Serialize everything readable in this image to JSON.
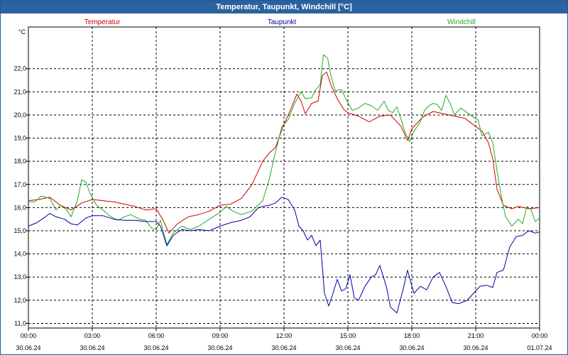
{
  "window": {
    "title": "Temperatur, Taupunkt, Windchill [°C]"
  },
  "chart_data": {
    "type": "line",
    "title": "Temperatur, Taupunkt, Windchill [°C]",
    "ylabel": "°C",
    "ylim": [
      10.8,
      23.8
    ],
    "xlim": [
      0,
      24
    ],
    "legend_position": "top",
    "grid": true,
    "yticks": [
      "11,0",
      "12,0",
      "13,0",
      "14,0",
      "15,0",
      "16,0",
      "17,0",
      "18,0",
      "19,0",
      "20,0",
      "21,0",
      "22,0"
    ],
    "xticks": [
      {
        "time": "00:00",
        "date": "30.06.24"
      },
      {
        "time": "03:00",
        "date": "30.06.24"
      },
      {
        "time": "06:00",
        "date": "30.06.24"
      },
      {
        "time": "09:00",
        "date": "30.06.24"
      },
      {
        "time": "12:00",
        "date": "30.06.24"
      },
      {
        "time": "15:00",
        "date": "30.06.24"
      },
      {
        "time": "18:00",
        "date": "30.06.24"
      },
      {
        "time": "21:00",
        "date": "30.06.24"
      },
      {
        "time": "00:00",
        "date": "01.07.24"
      }
    ],
    "series": [
      {
        "name": "Temperatur",
        "color": "#cc0000",
        "points": [
          [
            0,
            16.3
          ],
          [
            0.5,
            16.35
          ],
          [
            1,
            16.45
          ],
          [
            1.5,
            16.1
          ],
          [
            2,
            15.9
          ],
          [
            2.5,
            16.2
          ],
          [
            3,
            16.35
          ],
          [
            4,
            16.25
          ],
          [
            5,
            16.05
          ],
          [
            5.5,
            15.9
          ],
          [
            6,
            15.95
          ],
          [
            6.3,
            15.5
          ],
          [
            6.6,
            14.9
          ],
          [
            7,
            15.3
          ],
          [
            7.5,
            15.6
          ],
          [
            8,
            15.7
          ],
          [
            8.5,
            15.85
          ],
          [
            9,
            16.1
          ],
          [
            9.5,
            16.15
          ],
          [
            10,
            16.4
          ],
          [
            10.5,
            17.0
          ],
          [
            11,
            18.0
          ],
          [
            11.3,
            18.35
          ],
          [
            11.6,
            18.6
          ],
          [
            12,
            19.6
          ],
          [
            12.3,
            20.2
          ],
          [
            12.6,
            20.9
          ],
          [
            12.8,
            20.6
          ],
          [
            13,
            20.05
          ],
          [
            13.3,
            20.5
          ],
          [
            13.6,
            20.6
          ],
          [
            13.8,
            21.7
          ],
          [
            14,
            21.85
          ],
          [
            14.2,
            21.3
          ],
          [
            14.5,
            20.7
          ],
          [
            14.8,
            20.25
          ],
          [
            15,
            20.1
          ],
          [
            15.5,
            19.95
          ],
          [
            16,
            19.7
          ],
          [
            16.5,
            19.95
          ],
          [
            17,
            20.0
          ],
          [
            17.3,
            19.7
          ],
          [
            17.5,
            19.5
          ],
          [
            17.8,
            18.9
          ],
          [
            18,
            19.4
          ],
          [
            18.5,
            19.9
          ],
          [
            19,
            20.15
          ],
          [
            19.5,
            20.05
          ],
          [
            20,
            19.95
          ],
          [
            20.5,
            19.85
          ],
          [
            21,
            19.5
          ],
          [
            21.3,
            19.3
          ],
          [
            21.6,
            18.8
          ],
          [
            21.8,
            18.1
          ],
          [
            22,
            16.8
          ],
          [
            22.3,
            16.1
          ],
          [
            22.7,
            15.95
          ],
          [
            23,
            16.05
          ],
          [
            23.5,
            15.95
          ],
          [
            24,
            16.0
          ]
        ]
      },
      {
        "name": "Taupunkt",
        "color": "#0000aa",
        "points": [
          [
            0,
            15.2
          ],
          [
            0.4,
            15.35
          ],
          [
            0.8,
            15.6
          ],
          [
            1,
            15.75
          ],
          [
            1.3,
            15.6
          ],
          [
            1.7,
            15.5
          ],
          [
            2,
            15.3
          ],
          [
            2.3,
            15.25
          ],
          [
            2.7,
            15.55
          ],
          [
            3,
            15.65
          ],
          [
            3.5,
            15.65
          ],
          [
            4,
            15.5
          ],
          [
            4.5,
            15.45
          ],
          [
            5,
            15.45
          ],
          [
            5.5,
            15.4
          ],
          [
            6,
            15.4
          ],
          [
            6.2,
            15.2
          ],
          [
            6.5,
            14.35
          ],
          [
            6.8,
            14.8
          ],
          [
            7.2,
            15.05
          ],
          [
            7.6,
            15.0
          ],
          [
            8,
            15.05
          ],
          [
            8.5,
            15.0
          ],
          [
            9,
            15.2
          ],
          [
            9.5,
            15.35
          ],
          [
            10,
            15.45
          ],
          [
            10.4,
            15.6
          ],
          [
            10.8,
            16.0
          ],
          [
            11,
            16.05
          ],
          [
            11.3,
            16.1
          ],
          [
            11.6,
            16.2
          ],
          [
            11.9,
            16.45
          ],
          [
            12.2,
            16.35
          ],
          [
            12.5,
            15.9
          ],
          [
            12.7,
            15.2
          ],
          [
            12.9,
            15.0
          ],
          [
            13.1,
            14.6
          ],
          [
            13.3,
            14.8
          ],
          [
            13.5,
            14.35
          ],
          [
            13.7,
            14.6
          ],
          [
            13.9,
            12.3
          ],
          [
            14.1,
            11.75
          ],
          [
            14.3,
            12.3
          ],
          [
            14.5,
            12.9
          ],
          [
            14.7,
            12.4
          ],
          [
            14.9,
            12.5
          ],
          [
            15.1,
            13.1
          ],
          [
            15.3,
            12.1
          ],
          [
            15.5,
            12.0
          ],
          [
            15.8,
            12.6
          ],
          [
            16.1,
            13.0
          ],
          [
            16.3,
            13.1
          ],
          [
            16.5,
            13.5
          ],
          [
            16.8,
            12.6
          ],
          [
            17,
            11.7
          ],
          [
            17.3,
            11.45
          ],
          [
            17.6,
            12.5
          ],
          [
            17.8,
            13.3
          ],
          [
            18.1,
            12.3
          ],
          [
            18.4,
            12.6
          ],
          [
            18.7,
            12.45
          ],
          [
            19,
            13.0
          ],
          [
            19.3,
            13.2
          ],
          [
            19.6,
            12.6
          ],
          [
            19.9,
            11.9
          ],
          [
            20.2,
            11.85
          ],
          [
            20.6,
            12.0
          ],
          [
            20.9,
            12.3
          ],
          [
            21.2,
            12.6
          ],
          [
            21.5,
            12.65
          ],
          [
            21.8,
            12.55
          ],
          [
            22.0,
            13.2
          ],
          [
            22.3,
            13.3
          ],
          [
            22.6,
            14.3
          ],
          [
            22.9,
            14.75
          ],
          [
            23.2,
            14.8
          ],
          [
            23.5,
            15.0
          ],
          [
            23.8,
            14.9
          ],
          [
            24,
            14.95
          ]
        ]
      },
      {
        "name": "Windchill",
        "color": "#22aa22",
        "points": [
          [
            0,
            16.25
          ],
          [
            0.3,
            16.25
          ],
          [
            0.6,
            16.5
          ],
          [
            1,
            16.4
          ],
          [
            1.3,
            15.9
          ],
          [
            1.5,
            16.1
          ],
          [
            1.8,
            15.9
          ],
          [
            2,
            15.6
          ],
          [
            2.3,
            16.3
          ],
          [
            2.5,
            17.2
          ],
          [
            2.7,
            17.1
          ],
          [
            2.9,
            16.6
          ],
          [
            3.2,
            16.1
          ],
          [
            3.5,
            15.9
          ],
          [
            3.8,
            15.65
          ],
          [
            4.2,
            15.45
          ],
          [
            4.5,
            15.6
          ],
          [
            4.8,
            15.7
          ],
          [
            5.2,
            15.5
          ],
          [
            5.5,
            15.45
          ],
          [
            5.8,
            15.1
          ],
          [
            6,
            15.05
          ],
          [
            6.2,
            15.45
          ],
          [
            6.5,
            14.4
          ],
          [
            6.8,
            14.9
          ],
          [
            7.2,
            15.2
          ],
          [
            7.6,
            15.05
          ],
          [
            8,
            15.2
          ],
          [
            8.5,
            15.5
          ],
          [
            9,
            15.8
          ],
          [
            9.3,
            16.05
          ],
          [
            9.6,
            15.85
          ],
          [
            10,
            15.7
          ],
          [
            10.5,
            15.85
          ],
          [
            11,
            16.3
          ],
          [
            11.3,
            17.2
          ],
          [
            11.6,
            18.4
          ],
          [
            11.9,
            19.5
          ],
          [
            12.2,
            19.8
          ],
          [
            12.5,
            20.5
          ],
          [
            12.8,
            21.0
          ],
          [
            13.0,
            20.7
          ],
          [
            13.3,
            20.75
          ],
          [
            13.5,
            21.1
          ],
          [
            13.7,
            21.3
          ],
          [
            13.85,
            22.6
          ],
          [
            14.05,
            22.45
          ],
          [
            14.2,
            21.7
          ],
          [
            14.4,
            21.05
          ],
          [
            14.7,
            21.1
          ],
          [
            14.9,
            20.7
          ],
          [
            15.2,
            20.2
          ],
          [
            15.5,
            20.3
          ],
          [
            15.8,
            20.5
          ],
          [
            16.1,
            20.4
          ],
          [
            16.4,
            20.2
          ],
          [
            16.7,
            20.6
          ],
          [
            16.9,
            20.2
          ],
          [
            17.1,
            20.1
          ],
          [
            17.3,
            20.35
          ],
          [
            17.5,
            19.8
          ],
          [
            17.7,
            19.2
          ],
          [
            17.9,
            18.85
          ],
          [
            18.1,
            19.3
          ],
          [
            18.4,
            19.7
          ],
          [
            18.6,
            20.2
          ],
          [
            18.8,
            20.4
          ],
          [
            19,
            20.5
          ],
          [
            19.2,
            20.45
          ],
          [
            19.4,
            20.2
          ],
          [
            19.6,
            20.85
          ],
          [
            19.8,
            20.5
          ],
          [
            20,
            20.0
          ],
          [
            20.3,
            20.3
          ],
          [
            20.6,
            20.1
          ],
          [
            20.9,
            19.9
          ],
          [
            21.1,
            19.8
          ],
          [
            21.3,
            19.1
          ],
          [
            21.6,
            19.25
          ],
          [
            21.8,
            18.8
          ],
          [
            22,
            17.6
          ],
          [
            22.2,
            16.5
          ],
          [
            22.4,
            15.6
          ],
          [
            22.7,
            15.2
          ],
          [
            23,
            15.5
          ],
          [
            23.2,
            15.3
          ],
          [
            23.4,
            16.05
          ],
          [
            23.6,
            15.9
          ],
          [
            23.8,
            15.4
          ],
          [
            24,
            15.55
          ]
        ]
      }
    ]
  }
}
